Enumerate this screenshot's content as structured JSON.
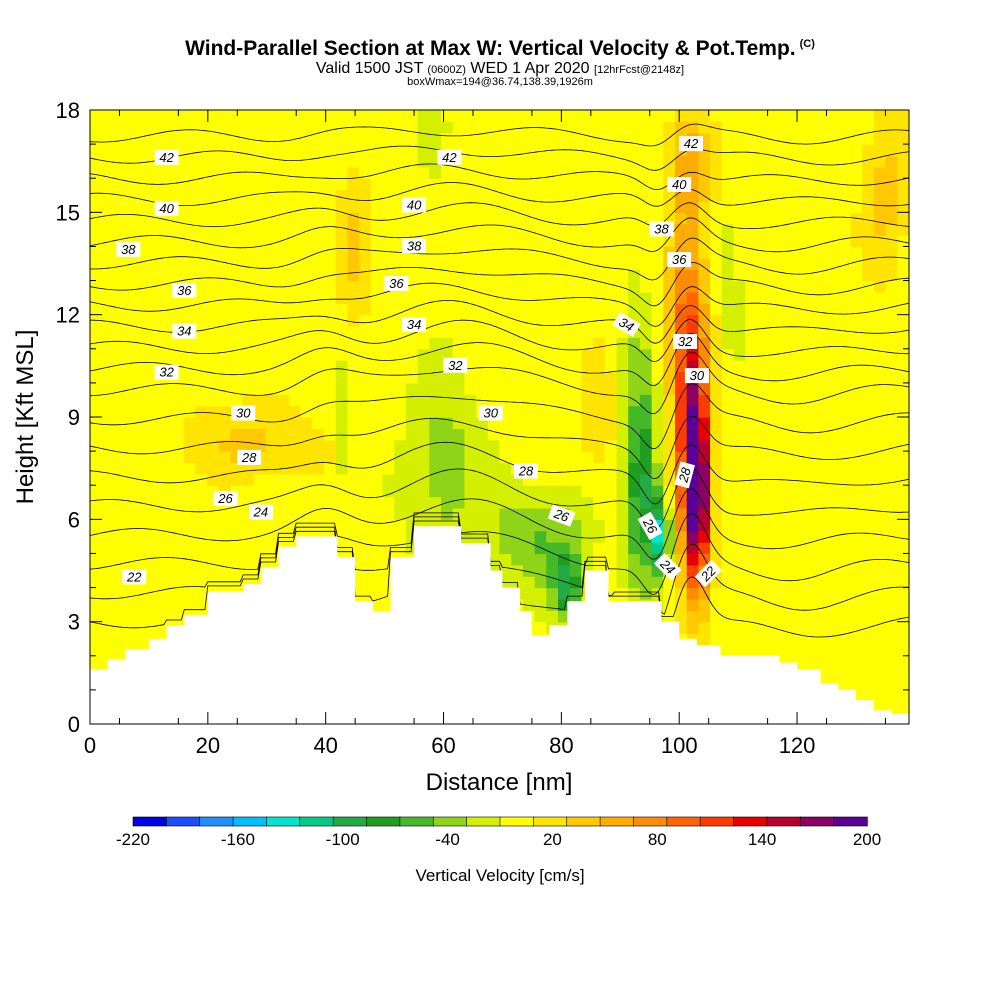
{
  "header": {
    "title": "Wind-Parallel Section at Max W: Vertical Velocity & Pot.Temp.",
    "title_mark": "(C)",
    "valid_prefix": "Valid 1500 JST",
    "valid_utc": "(0600Z)",
    "valid_date": "WED 1 Apr 2020",
    "forecast": "[12hrFcst@2148z]",
    "box_info": "boxWmax=194@36.74,138.39,1926m"
  },
  "chart_data": {
    "type": "heatmap",
    "xlabel": "Distance [nm]",
    "ylabel": "Height [Kft MSL]",
    "xlim": [
      0,
      139
    ],
    "ylim": [
      0,
      18
    ],
    "x_ticks": [
      0,
      20,
      40,
      60,
      80,
      100,
      120
    ],
    "y_ticks": [
      0,
      3,
      6,
      9,
      12,
      15,
      18
    ],
    "colorbar": {
      "label": "Vertical Velocity [cm/s]",
      "tick_labels": [
        -220,
        -160,
        -100,
        -40,
        20,
        80,
        140,
        200
      ],
      "levels": [
        -220,
        -200,
        -180,
        -160,
        -140,
        -120,
        -100,
        -80,
        -60,
        -40,
        -20,
        0,
        20,
        40,
        60,
        80,
        100,
        120,
        140,
        160,
        180,
        200
      ],
      "colors": [
        "#0000e6",
        "#1e4cff",
        "#1e90ff",
        "#00bfff",
        "#00e5cc",
        "#00cc88",
        "#22aa44",
        "#1f9e1f",
        "#44b828",
        "#8fd418",
        "#d4f000",
        "#ffff00",
        "#ffe400",
        "#ffc800",
        "#ffac00",
        "#ff8c00",
        "#ff6400",
        "#ff3c00",
        "#e80000",
        "#b8002e",
        "#8c0064",
        "#5a0096"
      ]
    },
    "terrain": {
      "x": [
        0,
        3,
        3,
        6,
        6,
        10,
        10,
        13,
        13,
        16,
        16,
        20,
        20,
        26,
        26,
        29,
        29,
        32,
        32,
        35,
        35,
        38,
        38,
        42,
        42,
        45,
        45,
        48,
        48,
        51,
        51,
        55,
        55,
        57,
        57,
        63,
        63,
        68,
        68,
        70,
        70,
        73,
        73,
        75,
        75,
        78,
        78,
        81,
        81,
        84,
        84,
        88,
        88,
        97,
        97,
        100,
        100,
        103,
        103,
        107,
        107,
        110,
        110,
        113,
        113,
        117,
        117,
        120,
        120,
        124,
        124,
        127,
        127,
        130,
        130,
        133,
        133,
        136,
        136,
        139
      ],
      "y": [
        1.6,
        1.6,
        1.9,
        1.9,
        2.2,
        2.2,
        2.5,
        2.5,
        2.9,
        2.9,
        3.2,
        3.2,
        3.9,
        3.9,
        4.1,
        4.1,
        4.6,
        4.6,
        5.2,
        5.2,
        5.5,
        5.5,
        5.5,
        5.5,
        4.9,
        4.9,
        3.6,
        3.6,
        3.3,
        3.3,
        4.9,
        4.9,
        5.8,
        5.8,
        5.8,
        5.8,
        5.3,
        5.3,
        4.5,
        4.5,
        4.0,
        4.0,
        3.3,
        3.3,
        2.6,
        2.6,
        2.9,
        2.9,
        3.6,
        3.6,
        4.5,
        4.5,
        3.6,
        3.6,
        3.0,
        3.0,
        2.5,
        2.5,
        2.3,
        2.3,
        2.0,
        2.0,
        2.0,
        2.0,
        2.0,
        2.0,
        1.8,
        1.8,
        1.6,
        1.6,
        1.2,
        1.2,
        1.0,
        1.0,
        0.7,
        0.7,
        0.4,
        0.4,
        0.3,
        0.3
      ]
    },
    "vertical_velocity_features": [
      {
        "x": 103,
        "y": 6.7,
        "rx": 2.2,
        "ry": 2.6,
        "w": 194
      },
      {
        "x": 102,
        "y": 9.0,
        "rx": 2.8,
        "ry": 4.0,
        "w": 110
      },
      {
        "x": 101,
        "y": 12.5,
        "rx": 3.5,
        "ry": 3.5,
        "w": 55
      },
      {
        "x": 97,
        "y": 5.5,
        "rx": 1.2,
        "ry": 1.0,
        "w": -160
      },
      {
        "x": 94,
        "y": 6.8,
        "rx": 2.5,
        "ry": 2.5,
        "w": -80
      },
      {
        "x": 93,
        "y": 9.0,
        "rx": 2.5,
        "ry": 4.5,
        "w": -30
      },
      {
        "x": 60,
        "y": 7.5,
        "rx": 6,
        "ry": 2.6,
        "w": -40
      },
      {
        "x": 76,
        "y": 5.5,
        "rx": 8,
        "ry": 1.4,
        "w": -50
      },
      {
        "x": 81,
        "y": 4.0,
        "rx": 2.5,
        "ry": 1.0,
        "w": -90
      },
      {
        "x": 43,
        "y": 8.5,
        "rx": 1.0,
        "ry": 1.8,
        "w": -25
      },
      {
        "x": 109,
        "y": 13.0,
        "rx": 1.3,
        "ry": 2.2,
        "w": -25
      },
      {
        "x": 58,
        "y": 17.5,
        "rx": 2.0,
        "ry": 1.5,
        "w": -20
      },
      {
        "x": 70,
        "y": 17.5,
        "rx": 2.0,
        "ry": 1.0,
        "w": -10
      },
      {
        "x": 27,
        "y": 8.3,
        "rx": 12,
        "ry": 1.2,
        "w": 35
      },
      {
        "x": 45,
        "y": 14.0,
        "rx": 3,
        "ry": 2.0,
        "w": 40
      },
      {
        "x": 102,
        "y": 16.5,
        "rx": 4,
        "ry": 1.5,
        "w": 45
      },
      {
        "x": 135,
        "y": 15.5,
        "rx": 4,
        "ry": 2.5,
        "w": 40
      },
      {
        "x": 86,
        "y": 9.0,
        "rx": 3,
        "ry": 2,
        "w": 30
      }
    ],
    "theta_contours": {
      "levels": [
        22,
        23,
        24,
        25,
        26,
        27,
        28,
        29,
        30,
        31,
        32,
        33,
        34,
        35,
        36,
        37,
        38,
        39,
        40,
        41,
        42
      ],
      "labels": [
        {
          "value": 22,
          "x": 7.5,
          "y": 4.3
        },
        {
          "value": 22,
          "x": 105,
          "y": 4.4,
          "angle": -45
        },
        {
          "value": 24,
          "x": 29,
          "y": 6.2
        },
        {
          "value": 24,
          "x": 98,
          "y": 4.6,
          "angle": 45
        },
        {
          "value": 26,
          "x": 23,
          "y": 6.6
        },
        {
          "value": 26,
          "x": 80,
          "y": 6.1,
          "angle": 20
        },
        {
          "value": 26,
          "x": 95,
          "y": 5.8,
          "angle": 60
        },
        {
          "value": 28,
          "x": 27,
          "y": 7.8
        },
        {
          "value": 28,
          "x": 74,
          "y": 7.4
        },
        {
          "value": 28,
          "x": 101,
          "y": 7.3,
          "angle": -75
        },
        {
          "value": 30,
          "x": 26,
          "y": 9.1
        },
        {
          "value": 30,
          "x": 68,
          "y": 9.1
        },
        {
          "value": 30,
          "x": 103,
          "y": 10.2
        },
        {
          "value": 32,
          "x": 13,
          "y": 10.3
        },
        {
          "value": 32,
          "x": 62,
          "y": 10.5
        },
        {
          "value": 32,
          "x": 101,
          "y": 11.2
        },
        {
          "value": 34,
          "x": 16,
          "y": 11.5
        },
        {
          "value": 34,
          "x": 55,
          "y": 11.7
        },
        {
          "value": 34,
          "x": 91,
          "y": 11.7,
          "angle": 30
        },
        {
          "value": 36,
          "x": 16,
          "y": 12.7
        },
        {
          "value": 36,
          "x": 52,
          "y": 12.9
        },
        {
          "value": 36,
          "x": 100,
          "y": 13.6
        },
        {
          "value": 38,
          "x": 6.5,
          "y": 13.9
        },
        {
          "value": 38,
          "x": 55,
          "y": 14.0
        },
        {
          "value": 38,
          "x": 97,
          "y": 14.5
        },
        {
          "value": 40,
          "x": 13,
          "y": 15.1
        },
        {
          "value": 40,
          "x": 55,
          "y": 15.2
        },
        {
          "value": 40,
          "x": 100,
          "y": 15.8
        },
        {
          "value": 42,
          "x": 13,
          "y": 16.6
        },
        {
          "value": 42,
          "x": 61,
          "y": 16.6
        },
        {
          "value": 42,
          "x": 102,
          "y": 17.0
        }
      ]
    }
  }
}
